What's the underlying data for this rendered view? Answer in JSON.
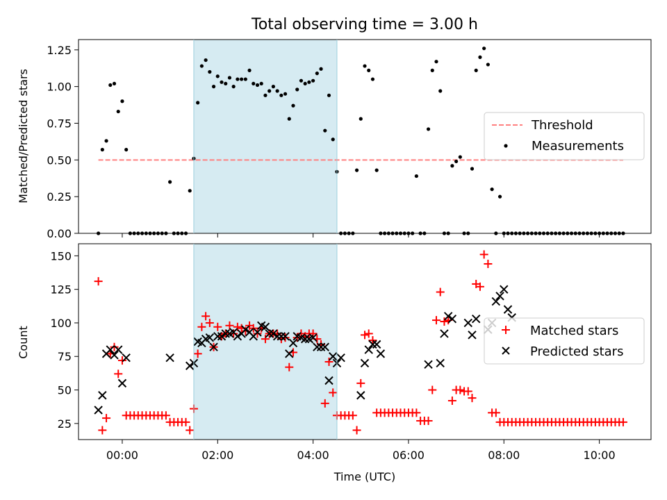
{
  "chart_data": [
    {
      "type": "scatter",
      "title": "Total observing time = 3.00 h",
      "xlabel": "",
      "ylabel": "Matched/Predicted stars",
      "xlim": [
        "2024-01-01T23:05",
        "2024-01-02T11:05"
      ],
      "ylim": [
        0,
        1.32
      ],
      "y_ticks": [
        "0.00",
        "0.25",
        "0.50",
        "0.75",
        "1.00",
        "1.25"
      ],
      "y_tick_values": [
        0,
        0.25,
        0.5,
        0.75,
        1.0,
        1.25
      ],
      "shaded_region": {
        "start": "2024-01-02T01:30",
        "end": "2024-01-02T04:30",
        "color": "#add8e6"
      },
      "legend_position": "center-right",
      "series": [
        {
          "name": "Threshold",
          "kind": "dashed-line",
          "color": "#ff7f7f",
          "x": [
            "2024-01-01T23:30",
            "2024-01-02T10:30"
          ],
          "y": [
            0.5,
            0.5
          ]
        },
        {
          "name": "Measurements",
          "kind": "dots",
          "color": "#000000",
          "x": [
            "2024-01-01T23:30",
            "2024-01-01T23:35",
            "2024-01-01T23:40",
            "2024-01-01T23:45",
            "2024-01-01T23:50",
            "2024-01-01T23:55",
            "2024-01-02T00:00",
            "2024-01-02T00:05",
            "2024-01-02T00:10",
            "2024-01-02T00:15",
            "2024-01-02T00:20",
            "2024-01-02T00:25",
            "2024-01-02T00:30",
            "2024-01-02T00:35",
            "2024-01-02T00:40",
            "2024-01-02T00:45",
            "2024-01-02T00:50",
            "2024-01-02T00:55",
            "2024-01-02T01:00",
            "2024-01-02T01:05",
            "2024-01-02T01:10",
            "2024-01-02T01:15",
            "2024-01-02T01:20",
            "2024-01-02T01:25",
            "2024-01-02T01:30",
            "2024-01-02T01:35",
            "2024-01-02T01:40",
            "2024-01-02T01:45",
            "2024-01-02T01:50",
            "2024-01-02T01:55",
            "2024-01-02T02:00",
            "2024-01-02T02:05",
            "2024-01-02T02:10",
            "2024-01-02T02:15",
            "2024-01-02T02:20",
            "2024-01-02T02:25",
            "2024-01-02T02:30",
            "2024-01-02T02:35",
            "2024-01-02T02:40",
            "2024-01-02T02:45",
            "2024-01-02T02:50",
            "2024-01-02T02:55",
            "2024-01-02T03:00",
            "2024-01-02T03:05",
            "2024-01-02T03:10",
            "2024-01-02T03:15",
            "2024-01-02T03:20",
            "2024-01-02T03:25",
            "2024-01-02T03:30",
            "2024-01-02T03:35",
            "2024-01-02T03:40",
            "2024-01-02T03:45",
            "2024-01-02T03:50",
            "2024-01-02T03:55",
            "2024-01-02T04:00",
            "2024-01-02T04:05",
            "2024-01-02T04:10",
            "2024-01-02T04:15",
            "2024-01-02T04:20",
            "2024-01-02T04:25",
            "2024-01-02T04:30",
            "2024-01-02T04:35",
            "2024-01-02T04:40",
            "2024-01-02T04:45",
            "2024-01-02T04:50",
            "2024-01-02T04:55",
            "2024-01-02T05:00",
            "2024-01-02T05:05",
            "2024-01-02T05:10",
            "2024-01-02T05:15",
            "2024-01-02T05:20",
            "2024-01-02T05:25",
            "2024-01-02T05:30",
            "2024-01-02T05:35",
            "2024-01-02T05:40",
            "2024-01-02T05:45",
            "2024-01-02T05:50",
            "2024-01-02T05:55",
            "2024-01-02T06:00",
            "2024-01-02T06:05",
            "2024-01-02T06:10",
            "2024-01-02T06:15",
            "2024-01-02T06:20",
            "2024-01-02T06:25",
            "2024-01-02T06:30",
            "2024-01-02T06:35",
            "2024-01-02T06:40",
            "2024-01-02T06:45",
            "2024-01-02T06:50",
            "2024-01-02T06:55",
            "2024-01-02T07:00",
            "2024-01-02T07:05",
            "2024-01-02T07:10",
            "2024-01-02T07:15",
            "2024-01-02T07:20",
            "2024-01-02T07:25",
            "2024-01-02T07:30",
            "2024-01-02T07:35",
            "2024-01-02T07:40",
            "2024-01-02T07:45",
            "2024-01-02T07:50",
            "2024-01-02T07:55",
            "2024-01-02T08:00",
            "2024-01-02T08:05",
            "2024-01-02T08:10",
            "2024-01-02T08:15",
            "2024-01-02T08:20",
            "2024-01-02T08:25",
            "2024-01-02T08:30",
            "2024-01-02T08:35",
            "2024-01-02T08:40",
            "2024-01-02T08:45",
            "2024-01-02T08:50",
            "2024-01-02T08:55",
            "2024-01-02T09:00",
            "2024-01-02T09:05",
            "2024-01-02T09:10",
            "2024-01-02T09:15",
            "2024-01-02T09:20",
            "2024-01-02T09:25",
            "2024-01-02T09:30",
            "2024-01-02T09:35",
            "2024-01-02T09:40",
            "2024-01-02T09:45",
            "2024-01-02T09:50",
            "2024-01-02T09:55",
            "2024-01-02T10:00",
            "2024-01-02T10:05",
            "2024-01-02T10:10",
            "2024-01-02T10:15",
            "2024-01-02T10:20",
            "2024-01-02T10:25",
            "2024-01-02T10:30"
          ],
          "y": [
            0.0,
            0.57,
            0.63,
            1.01,
            1.02,
            0.83,
            0.9,
            0.57,
            0.0,
            0.0,
            0.0,
            0.0,
            0.0,
            0.0,
            0.0,
            0.0,
            0.0,
            0.0,
            0.35,
            0.0,
            0.0,
            0.0,
            0.0,
            0.29,
            0.51,
            0.89,
            1.14,
            1.18,
            1.1,
            1.0,
            1.07,
            1.03,
            1.02,
            1.06,
            1.0,
            1.05,
            1.05,
            1.05,
            1.11,
            1.02,
            1.01,
            1.02,
            0.94,
            0.97,
            1.0,
            0.97,
            0.94,
            0.95,
            0.78,
            0.87,
            0.98,
            1.04,
            1.02,
            1.03,
            1.04,
            1.09,
            1.12,
            0.7,
            0.94,
            0.64,
            0.42,
            0.0,
            0.0,
            0.0,
            0.0,
            0.43,
            0.78,
            1.14,
            1.11,
            1.05,
            0.43,
            0.0,
            0.0,
            0.0,
            0.0,
            0.0,
            0.0,
            0.0,
            0.0,
            0.0,
            0.39,
            0.0,
            0.0,
            0.71,
            1.11,
            1.17,
            0.97,
            0.0,
            0.0,
            0.46,
            0.49,
            0.52,
            0.0,
            0.0,
            0.44,
            1.11,
            1.2,
            1.26,
            1.15,
            0.3,
            0.0,
            0.25,
            0.0,
            0.0,
            0.0,
            0.0,
            0.0,
            0.0,
            0.0,
            0.0,
            0.0,
            0.0,
            0.0,
            0.0,
            0.0,
            0.0,
            0.0,
            0.0,
            0.0,
            0.0,
            0.0,
            0.0,
            0.0,
            0.0,
            0.0,
            0.0,
            0.0,
            0.0,
            0.0,
            0.0,
            0.0,
            0.0,
            0.0
          ]
        }
      ]
    },
    {
      "type": "scatter",
      "xlabel": "Time (UTC)",
      "ylabel": "Count",
      "xlim": [
        "2024-01-01T23:05",
        "2024-01-02T11:05"
      ],
      "ylim": [
        13,
        159
      ],
      "x_ticks": [
        "00:00",
        "02:00",
        "04:00",
        "06:00",
        "08:00",
        "10:00"
      ],
      "x_tick_values": [
        "2024-01-02T00:00",
        "2024-01-02T02:00",
        "2024-01-02T04:00",
        "2024-01-02T06:00",
        "2024-01-02T08:00",
        "2024-01-02T10:00"
      ],
      "y_ticks": [
        "25",
        "50",
        "75",
        "100",
        "125",
        "150"
      ],
      "y_tick_values": [
        25,
        50,
        75,
        100,
        125,
        150
      ],
      "shaded_region": {
        "start": "2024-01-02T01:30",
        "end": "2024-01-02T04:30",
        "color": "#add8e6"
      },
      "legend_position": "center-right",
      "series": [
        {
          "name": "Matched stars",
          "kind": "plus",
          "color": "#ff0000",
          "x": [
            "2024-01-01T23:30",
            "2024-01-01T23:35",
            "2024-01-01T23:40",
            "2024-01-01T23:45",
            "2024-01-01T23:50",
            "2024-01-01T23:55",
            "2024-01-02T00:00",
            "2024-01-02T00:05",
            "2024-01-02T00:10",
            "2024-01-02T00:15",
            "2024-01-02T00:20",
            "2024-01-02T00:25",
            "2024-01-02T00:30",
            "2024-01-02T00:35",
            "2024-01-02T00:40",
            "2024-01-02T00:45",
            "2024-01-02T00:50",
            "2024-01-02T00:55",
            "2024-01-02T01:00",
            "2024-01-02T01:05",
            "2024-01-02T01:10",
            "2024-01-02T01:15",
            "2024-01-02T01:20",
            "2024-01-02T01:25",
            "2024-01-02T01:30",
            "2024-01-02T01:35",
            "2024-01-02T01:40",
            "2024-01-02T01:45",
            "2024-01-02T01:50",
            "2024-01-02T01:55",
            "2024-01-02T02:00",
            "2024-01-02T02:05",
            "2024-01-02T02:10",
            "2024-01-02T02:15",
            "2024-01-02T02:20",
            "2024-01-02T02:25",
            "2024-01-02T02:30",
            "2024-01-02T02:35",
            "2024-01-02T02:40",
            "2024-01-02T02:45",
            "2024-01-02T02:50",
            "2024-01-02T02:55",
            "2024-01-02T03:00",
            "2024-01-02T03:05",
            "2024-01-02T03:10",
            "2024-01-02T03:15",
            "2024-01-02T03:20",
            "2024-01-02T03:25",
            "2024-01-02T03:30",
            "2024-01-02T03:35",
            "2024-01-02T03:40",
            "2024-01-02T03:45",
            "2024-01-02T03:50",
            "2024-01-02T03:55",
            "2024-01-02T04:00",
            "2024-01-02T04:05",
            "2024-01-02T04:10",
            "2024-01-02T04:15",
            "2024-01-02T04:20",
            "2024-01-02T04:25",
            "2024-01-02T04:30",
            "2024-01-02T04:35",
            "2024-01-02T04:40",
            "2024-01-02T04:45",
            "2024-01-02T04:50",
            "2024-01-02T04:55",
            "2024-01-02T05:00",
            "2024-01-02T05:05",
            "2024-01-02T05:10",
            "2024-01-02T05:15",
            "2024-01-02T05:20",
            "2024-01-02T05:25",
            "2024-01-02T05:30",
            "2024-01-02T05:35",
            "2024-01-02T05:40",
            "2024-01-02T05:45",
            "2024-01-02T05:50",
            "2024-01-02T05:55",
            "2024-01-02T06:00",
            "2024-01-02T06:05",
            "2024-01-02T06:10",
            "2024-01-02T06:15",
            "2024-01-02T06:20",
            "2024-01-02T06:25",
            "2024-01-02T06:30",
            "2024-01-02T06:35",
            "2024-01-02T06:40",
            "2024-01-02T06:45",
            "2024-01-02T06:50",
            "2024-01-02T06:55",
            "2024-01-02T07:00",
            "2024-01-02T07:05",
            "2024-01-02T07:10",
            "2024-01-02T07:15",
            "2024-01-02T07:20",
            "2024-01-02T07:25",
            "2024-01-02T07:30",
            "2024-01-02T07:35",
            "2024-01-02T07:40",
            "2024-01-02T07:45",
            "2024-01-02T07:50",
            "2024-01-02T07:55",
            "2024-01-02T08:00",
            "2024-01-02T08:05",
            "2024-01-02T08:10",
            "2024-01-02T08:15",
            "2024-01-02T08:20",
            "2024-01-02T08:25",
            "2024-01-02T08:30",
            "2024-01-02T08:35",
            "2024-01-02T08:40",
            "2024-01-02T08:45",
            "2024-01-02T08:50",
            "2024-01-02T08:55",
            "2024-01-02T09:00",
            "2024-01-02T09:05",
            "2024-01-02T09:10",
            "2024-01-02T09:15",
            "2024-01-02T09:20",
            "2024-01-02T09:25",
            "2024-01-02T09:30",
            "2024-01-02T09:35",
            "2024-01-02T09:40",
            "2024-01-02T09:45",
            "2024-01-02T09:50",
            "2024-01-02T09:55",
            "2024-01-02T10:00",
            "2024-01-02T10:05",
            "2024-01-02T10:10",
            "2024-01-02T10:15",
            "2024-01-02T10:20",
            "2024-01-02T10:25",
            "2024-01-02T10:30"
          ],
          "y": [
            131,
            20,
            29,
            77,
            82,
            62,
            72,
            31,
            31,
            31,
            31,
            31,
            31,
            31,
            31,
            31,
            31,
            31,
            26,
            26,
            26,
            26,
            26,
            20,
            36,
            77,
            97,
            105,
            100,
            82,
            97,
            90,
            92,
            98,
            92,
            97,
            96,
            94,
            98,
            96,
            92,
            96,
            88,
            92,
            92,
            92,
            88,
            89,
            67,
            78,
            89,
            92,
            90,
            92,
            92,
            88,
            84,
            40,
            71,
            48,
            31,
            31,
            31,
            31,
            31,
            20,
            55,
            91,
            92,
            87,
            33,
            33,
            33,
            33,
            33,
            33,
            33,
            33,
            33,
            33,
            33,
            27,
            27,
            27,
            50,
            102,
            123,
            101,
            102,
            42,
            50,
            50,
            49,
            49,
            44,
            129,
            127,
            151,
            144,
            33,
            33,
            26,
            26,
            26,
            26,
            26,
            26,
            26,
            26,
            26,
            26,
            26,
            26,
            26,
            26,
            26,
            26,
            26,
            26,
            26,
            26,
            26,
            26,
            26,
            26,
            26,
            26,
            26,
            26,
            26,
            26,
            26,
            26
          ]
        },
        {
          "name": "Predicted stars",
          "kind": "x",
          "color": "#000000",
          "x": [
            "2024-01-01T23:30",
            "2024-01-01T23:35",
            "2024-01-01T23:40",
            "2024-01-01T23:45",
            "2024-01-01T23:50",
            "2024-01-01T23:55",
            "2024-01-02T00:00",
            "2024-01-02T00:05",
            "2024-01-02T01:00",
            "2024-01-02T01:25",
            "2024-01-02T01:30",
            "2024-01-02T01:35",
            "2024-01-02T01:40",
            "2024-01-02T01:45",
            "2024-01-02T01:50",
            "2024-01-02T01:55",
            "2024-01-02T02:00",
            "2024-01-02T02:05",
            "2024-01-02T02:10",
            "2024-01-02T02:15",
            "2024-01-02T02:20",
            "2024-01-02T02:25",
            "2024-01-02T02:30",
            "2024-01-02T02:35",
            "2024-01-02T02:40",
            "2024-01-02T02:45",
            "2024-01-02T02:50",
            "2024-01-02T02:55",
            "2024-01-02T03:00",
            "2024-01-02T03:05",
            "2024-01-02T03:10",
            "2024-01-02T03:15",
            "2024-01-02T03:20",
            "2024-01-02T03:25",
            "2024-01-02T03:30",
            "2024-01-02T03:35",
            "2024-01-02T03:40",
            "2024-01-02T03:45",
            "2024-01-02T03:50",
            "2024-01-02T03:55",
            "2024-01-02T04:00",
            "2024-01-02T04:05",
            "2024-01-02T04:10",
            "2024-01-02T04:15",
            "2024-01-02T04:20",
            "2024-01-02T04:25",
            "2024-01-02T04:30",
            "2024-01-02T04:35",
            "2024-01-02T05:00",
            "2024-01-02T05:05",
            "2024-01-02T05:10",
            "2024-01-02T05:15",
            "2024-01-02T05:20",
            "2024-01-02T05:25",
            "2024-01-02T06:25",
            "2024-01-02T06:40",
            "2024-01-02T06:45",
            "2024-01-02T06:50",
            "2024-01-02T06:55",
            "2024-01-02T07:15",
            "2024-01-02T07:20",
            "2024-01-02T07:25",
            "2024-01-02T07:40",
            "2024-01-02T07:45",
            "2024-01-02T07:50",
            "2024-01-02T07:55",
            "2024-01-02T08:00",
            "2024-01-02T08:05",
            "2024-01-02T08:10"
          ],
          "y": [
            35,
            46,
            77,
            80,
            76,
            80,
            55,
            74,
            74,
            68,
            70,
            86,
            85,
            88,
            89,
            82,
            90,
            90,
            92,
            92,
            93,
            90,
            92,
            95,
            93,
            90,
            93,
            98,
            97,
            92,
            92,
            90,
            90,
            90,
            77,
            85,
            90,
            89,
            88,
            88,
            89,
            82,
            82,
            82,
            57,
            75,
            70,
            74,
            46,
            70,
            80,
            84,
            84,
            77,
            69,
            70,
            92,
            105,
            103,
            100,
            91,
            103,
            95,
            100,
            116,
            120,
            125,
            110,
            104
          ]
        }
      ]
    }
  ]
}
